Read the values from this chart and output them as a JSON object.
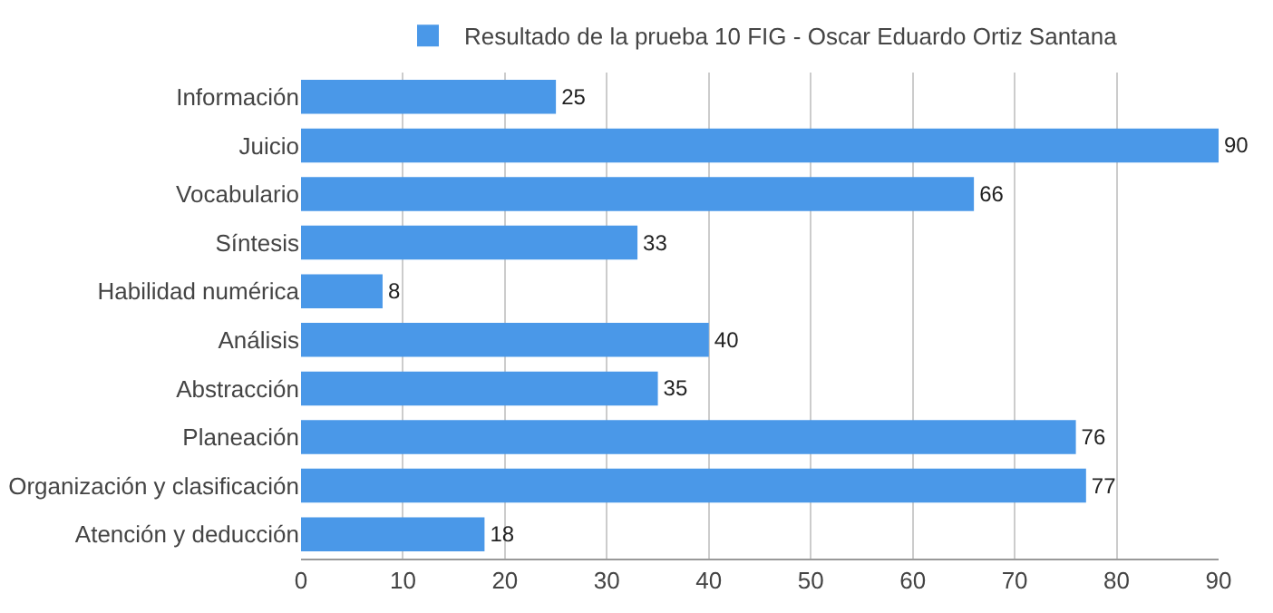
{
  "chart_data": {
    "type": "bar",
    "orientation": "horizontal",
    "categories": [
      "Información",
      "Juicio",
      "Vocabulario",
      "Síntesis",
      "Habilidad numérica",
      "Análisis",
      "Abstracción",
      "Planeación",
      "Organización y clasificación",
      "Atención y deducción"
    ],
    "series": [
      {
        "name": "Resultado de la prueba 10 FIG - Oscar Eduardo Ortiz Santana",
        "color": "#4a98e8",
        "values": [
          25,
          90,
          66,
          33,
          8,
          40,
          35,
          76,
          77,
          18
        ]
      }
    ],
    "xlim": [
      0,
      90
    ],
    "xticks": [
      0,
      10,
      20,
      30,
      40,
      50,
      60,
      70,
      80,
      90
    ],
    "grid": "x",
    "legend": "top",
    "data_labels": true
  }
}
